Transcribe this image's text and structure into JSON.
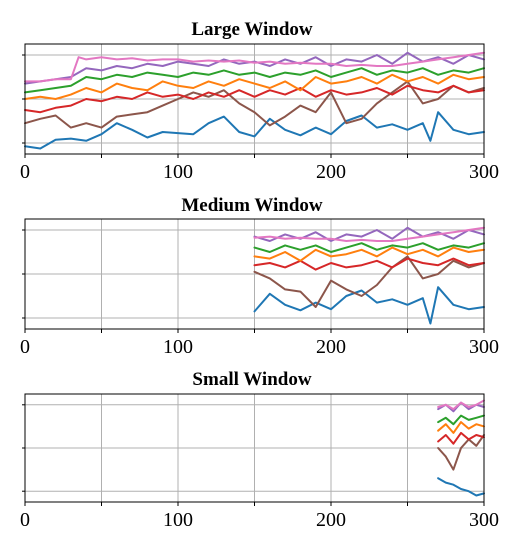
{
  "chart_data": [
    {
      "type": "line",
      "title": "Large Window",
      "xlim": [
        0,
        300
      ],
      "xticks": [
        0,
        100,
        200,
        300
      ],
      "ylim": [
        0,
        1
      ],
      "grid": true,
      "series": [
        {
          "color": "#1f77b4",
          "x": [
            0,
            10,
            20,
            30,
            40,
            50,
            60,
            70,
            80,
            90,
            100,
            110,
            120,
            130,
            140,
            150,
            160,
            170,
            180,
            190,
            200,
            210,
            220,
            230,
            240,
            250,
            260,
            265,
            270,
            280,
            290,
            300
          ],
          "values": [
            0.07,
            0.05,
            0.13,
            0.14,
            0.12,
            0.18,
            0.28,
            0.22,
            0.15,
            0.2,
            0.19,
            0.18,
            0.28,
            0.34,
            0.2,
            0.16,
            0.32,
            0.22,
            0.17,
            0.24,
            0.18,
            0.3,
            0.35,
            0.24,
            0.27,
            0.22,
            0.28,
            0.12,
            0.38,
            0.22,
            0.18,
            0.2
          ]
        },
        {
          "color": "#8c564b",
          "x": [
            0,
            10,
            20,
            30,
            40,
            50,
            60,
            70,
            80,
            90,
            100,
            110,
            120,
            130,
            140,
            150,
            160,
            170,
            180,
            190,
            200,
            210,
            220,
            230,
            240,
            250,
            260,
            270,
            280,
            290,
            300
          ],
          "values": [
            0.28,
            0.32,
            0.35,
            0.24,
            0.28,
            0.24,
            0.34,
            0.36,
            0.38,
            0.44,
            0.5,
            0.56,
            0.52,
            0.58,
            0.46,
            0.38,
            0.26,
            0.34,
            0.44,
            0.38,
            0.56,
            0.28,
            0.32,
            0.46,
            0.56,
            0.66,
            0.46,
            0.5,
            0.62,
            0.56,
            0.6
          ]
        },
        {
          "color": "#d62728",
          "x": [
            0,
            10,
            20,
            30,
            40,
            50,
            60,
            70,
            80,
            90,
            100,
            110,
            120,
            130,
            140,
            150,
            160,
            170,
            180,
            190,
            200,
            210,
            220,
            230,
            240,
            250,
            260,
            270,
            280,
            290,
            300
          ],
          "values": [
            0.4,
            0.38,
            0.42,
            0.44,
            0.5,
            0.48,
            0.52,
            0.5,
            0.56,
            0.52,
            0.54,
            0.5,
            0.56,
            0.52,
            0.58,
            0.52,
            0.58,
            0.54,
            0.6,
            0.52,
            0.58,
            0.54,
            0.56,
            0.6,
            0.54,
            0.62,
            0.58,
            0.56,
            0.62,
            0.56,
            0.58
          ]
        },
        {
          "color": "#ff7f0e",
          "x": [
            0,
            10,
            20,
            30,
            40,
            50,
            60,
            70,
            80,
            90,
            100,
            110,
            120,
            130,
            140,
            150,
            160,
            170,
            180,
            190,
            200,
            210,
            220,
            230,
            240,
            250,
            260,
            270,
            280,
            290,
            300
          ],
          "values": [
            0.5,
            0.52,
            0.5,
            0.54,
            0.6,
            0.56,
            0.64,
            0.6,
            0.58,
            0.66,
            0.62,
            0.6,
            0.66,
            0.62,
            0.68,
            0.64,
            0.6,
            0.66,
            0.58,
            0.7,
            0.64,
            0.66,
            0.7,
            0.64,
            0.72,
            0.66,
            0.7,
            0.64,
            0.72,
            0.68,
            0.7
          ]
        },
        {
          "color": "#2ca02c",
          "x": [
            0,
            10,
            20,
            30,
            40,
            50,
            60,
            70,
            80,
            90,
            100,
            110,
            120,
            130,
            140,
            150,
            160,
            170,
            180,
            190,
            200,
            210,
            220,
            230,
            240,
            250,
            260,
            270,
            280,
            290,
            300
          ],
          "values": [
            0.56,
            0.58,
            0.6,
            0.62,
            0.7,
            0.68,
            0.72,
            0.7,
            0.74,
            0.72,
            0.7,
            0.74,
            0.72,
            0.76,
            0.72,
            0.74,
            0.7,
            0.74,
            0.72,
            0.76,
            0.7,
            0.74,
            0.78,
            0.72,
            0.76,
            0.74,
            0.78,
            0.72,
            0.76,
            0.74,
            0.78
          ]
        },
        {
          "color": "#9467bd",
          "x": [
            0,
            10,
            20,
            30,
            40,
            50,
            60,
            70,
            80,
            90,
            100,
            110,
            120,
            130,
            140,
            150,
            160,
            170,
            180,
            190,
            200,
            210,
            220,
            230,
            240,
            250,
            260,
            270,
            280,
            290,
            300
          ],
          "values": [
            0.64,
            0.66,
            0.68,
            0.7,
            0.78,
            0.76,
            0.8,
            0.78,
            0.82,
            0.8,
            0.84,
            0.82,
            0.8,
            0.86,
            0.82,
            0.84,
            0.8,
            0.86,
            0.82,
            0.88,
            0.8,
            0.86,
            0.84,
            0.9,
            0.82,
            0.92,
            0.84,
            0.88,
            0.82,
            0.9,
            0.86
          ]
        },
        {
          "color": "#e377c2",
          "x": [
            0,
            10,
            20,
            30,
            35,
            40,
            50,
            60,
            70,
            80,
            90,
            100,
            110,
            120,
            130,
            140,
            150,
            160,
            170,
            180,
            190,
            200,
            210,
            220,
            230,
            240,
            250,
            260,
            270,
            280,
            290,
            300
          ],
          "values": [
            0.66,
            0.66,
            0.68,
            0.68,
            0.88,
            0.86,
            0.88,
            0.86,
            0.87,
            0.85,
            0.86,
            0.86,
            0.84,
            0.85,
            0.84,
            0.85,
            0.83,
            0.84,
            0.82,
            0.83,
            0.82,
            0.82,
            0.8,
            0.81,
            0.8,
            0.8,
            0.82,
            0.84,
            0.86,
            0.88,
            0.9,
            0.92
          ]
        }
      ]
    },
    {
      "type": "line",
      "title": "Medium Window",
      "xlim": [
        0,
        300
      ],
      "xticks": [
        0,
        100,
        200,
        300
      ],
      "ylim": [
        0,
        1
      ],
      "grid": true,
      "series": [
        {
          "color": "#1f77b4",
          "x": [
            150,
            160,
            170,
            180,
            190,
            200,
            210,
            220,
            230,
            240,
            250,
            260,
            265,
            270,
            280,
            290,
            300
          ],
          "values": [
            0.16,
            0.32,
            0.22,
            0.17,
            0.24,
            0.18,
            0.3,
            0.35,
            0.24,
            0.27,
            0.22,
            0.28,
            0.05,
            0.38,
            0.22,
            0.18,
            0.2
          ]
        },
        {
          "color": "#8c564b",
          "x": [
            150,
            160,
            170,
            180,
            190,
            200,
            210,
            220,
            230,
            240,
            250,
            260,
            270,
            280,
            290,
            300
          ],
          "values": [
            0.52,
            0.46,
            0.36,
            0.34,
            0.2,
            0.44,
            0.36,
            0.3,
            0.4,
            0.56,
            0.66,
            0.46,
            0.5,
            0.62,
            0.56,
            0.6
          ]
        },
        {
          "color": "#d62728",
          "x": [
            150,
            160,
            170,
            180,
            190,
            200,
            210,
            220,
            230,
            240,
            250,
            260,
            270,
            280,
            290,
            300
          ],
          "values": [
            0.58,
            0.6,
            0.56,
            0.62,
            0.54,
            0.6,
            0.56,
            0.58,
            0.62,
            0.56,
            0.64,
            0.6,
            0.58,
            0.64,
            0.58,
            0.6
          ]
        },
        {
          "color": "#ff7f0e",
          "x": [
            150,
            160,
            170,
            180,
            190,
            200,
            210,
            220,
            230,
            240,
            250,
            260,
            270,
            280,
            290,
            300
          ],
          "values": [
            0.66,
            0.64,
            0.7,
            0.62,
            0.72,
            0.66,
            0.68,
            0.72,
            0.66,
            0.74,
            0.68,
            0.72,
            0.66,
            0.74,
            0.7,
            0.72
          ]
        },
        {
          "color": "#2ca02c",
          "x": [
            150,
            160,
            170,
            180,
            190,
            200,
            210,
            220,
            230,
            240,
            250,
            260,
            270,
            280,
            290,
            300
          ],
          "values": [
            0.74,
            0.7,
            0.76,
            0.72,
            0.76,
            0.7,
            0.74,
            0.78,
            0.72,
            0.76,
            0.74,
            0.78,
            0.72,
            0.76,
            0.74,
            0.78
          ]
        },
        {
          "color": "#9467bd",
          "x": [
            150,
            160,
            170,
            180,
            190,
            200,
            210,
            220,
            230,
            240,
            250,
            260,
            270,
            280,
            290,
            300
          ],
          "values": [
            0.84,
            0.8,
            0.86,
            0.82,
            0.88,
            0.8,
            0.86,
            0.84,
            0.9,
            0.82,
            0.92,
            0.84,
            0.88,
            0.82,
            0.9,
            0.86
          ]
        },
        {
          "color": "#e377c2",
          "x": [
            150,
            160,
            170,
            180,
            190,
            200,
            210,
            220,
            230,
            240,
            250,
            260,
            270,
            280,
            290,
            300
          ],
          "values": [
            0.83,
            0.84,
            0.82,
            0.83,
            0.82,
            0.82,
            0.8,
            0.81,
            0.8,
            0.8,
            0.82,
            0.84,
            0.86,
            0.88,
            0.9,
            0.92
          ]
        }
      ]
    },
    {
      "type": "line",
      "title": "Small Window",
      "xlim": [
        0,
        300
      ],
      "xticks": [
        0,
        100,
        200,
        300
      ],
      "ylim": [
        0,
        1
      ],
      "grid": true,
      "series": [
        {
          "color": "#1f77b4",
          "x": [
            270,
            275,
            280,
            285,
            290,
            295,
            300
          ],
          "values": [
            0.22,
            0.18,
            0.16,
            0.12,
            0.1,
            0.06,
            0.08
          ]
        },
        {
          "color": "#8c564b",
          "x": [
            270,
            275,
            280,
            285,
            290,
            295,
            300
          ],
          "values": [
            0.5,
            0.42,
            0.3,
            0.5,
            0.58,
            0.52,
            0.62
          ]
        },
        {
          "color": "#d62728",
          "x": [
            270,
            275,
            280,
            285,
            290,
            295,
            300
          ],
          "values": [
            0.56,
            0.62,
            0.54,
            0.64,
            0.58,
            0.62,
            0.6
          ]
        },
        {
          "color": "#ff7f0e",
          "x": [
            270,
            275,
            280,
            285,
            290,
            295,
            300
          ],
          "values": [
            0.66,
            0.72,
            0.64,
            0.74,
            0.68,
            0.72,
            0.7
          ]
        },
        {
          "color": "#2ca02c",
          "x": [
            270,
            275,
            280,
            285,
            290,
            295,
            300
          ],
          "values": [
            0.74,
            0.78,
            0.72,
            0.8,
            0.76,
            0.78,
            0.8
          ]
        },
        {
          "color": "#9467bd",
          "x": [
            270,
            275,
            280,
            285,
            290,
            295,
            300
          ],
          "values": [
            0.86,
            0.9,
            0.84,
            0.92,
            0.86,
            0.9,
            0.88
          ]
        },
        {
          "color": "#e377c2",
          "x": [
            270,
            275,
            280,
            285,
            290,
            295,
            300
          ],
          "values": [
            0.88,
            0.9,
            0.86,
            0.92,
            0.88,
            0.9,
            0.94
          ]
        }
      ]
    }
  ]
}
